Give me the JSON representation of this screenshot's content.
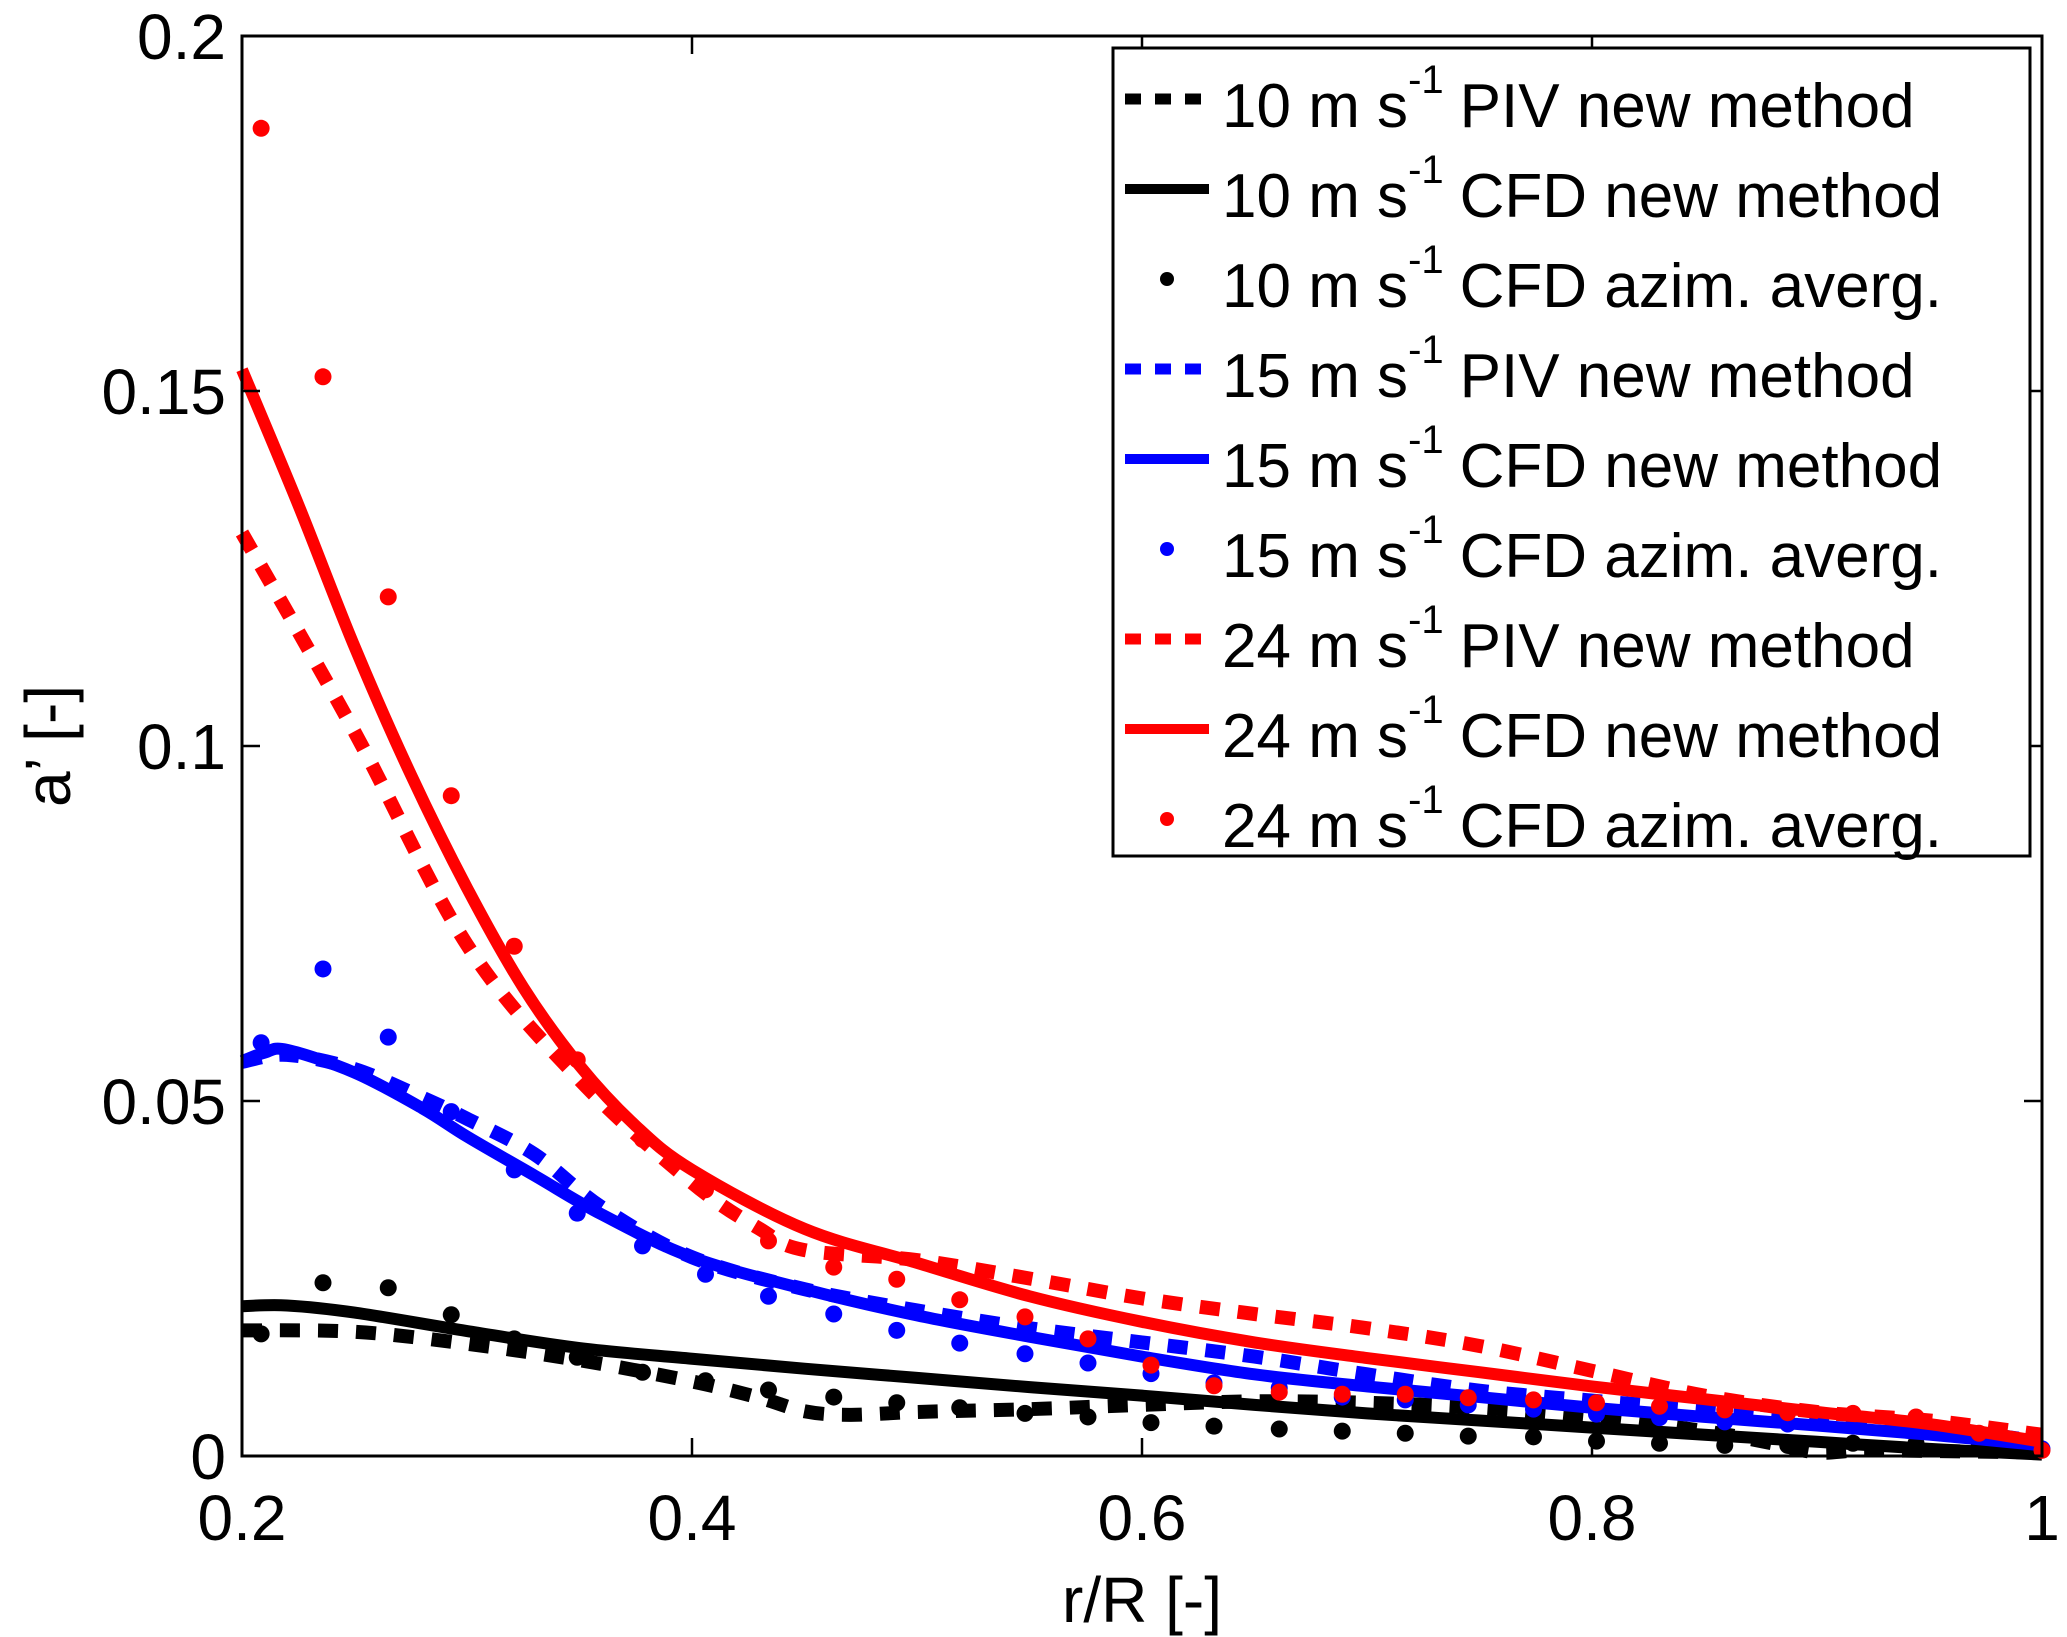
{
  "chart_data": {
    "type": "line",
    "title": "",
    "xlabel": "r/R [-]",
    "ylabel": "a’ [-]",
    "xlim": [
      0.2,
      1.0
    ],
    "ylim": [
      0,
      0.2
    ],
    "xticks": [
      0.2,
      0.4,
      0.6,
      0.8,
      1.0
    ],
    "xtick_labels": [
      "0.2",
      "0.4",
      "0.6",
      "0.8",
      "1"
    ],
    "yticks": [
      0,
      0.05,
      0.1,
      0.15,
      0.2
    ],
    "ytick_labels": [
      "0",
      "0.05",
      "0.1",
      "0.15",
      "0.2"
    ],
    "grid": false,
    "legend_position": "top-right",
    "series": [
      {
        "name": "10 m s-1 PIV new method",
        "label_prefix": "10 m s",
        "label_sup": "-1",
        "label_suffix": "PIV new method",
        "color": "#000000",
        "style": "dashed",
        "x": [
          0.2,
          0.25,
          0.3,
          0.35,
          0.4,
          0.43,
          0.45,
          0.47,
          0.5,
          0.55,
          0.6,
          0.65,
          0.7,
          0.75,
          0.8,
          0.85,
          0.88,
          0.9,
          0.92,
          0.95,
          1.0
        ],
        "y": [
          0.0177,
          0.0175,
          0.0158,
          0.0135,
          0.0105,
          0.0082,
          0.0063,
          0.0058,
          0.0062,
          0.0066,
          0.0072,
          0.0077,
          0.0075,
          0.0068,
          0.0055,
          0.0035,
          0.0018,
          0.0005,
          0.0008,
          0.0007,
          0.0005
        ]
      },
      {
        "name": "10 m s-1 CFD new method",
        "label_prefix": "10 m s",
        "label_sup": "-1",
        "label_suffix": "CFD new method",
        "color": "#000000",
        "style": "solid",
        "x": [
          0.2,
          0.22,
          0.25,
          0.3,
          0.35,
          0.4,
          0.45,
          0.5,
          0.55,
          0.6,
          0.65,
          0.7,
          0.75,
          0.8,
          0.85,
          0.9,
          0.95,
          1.0
        ],
        "y": [
          0.0211,
          0.0212,
          0.0202,
          0.0176,
          0.0152,
          0.0137,
          0.0123,
          0.011,
          0.0097,
          0.0085,
          0.0072,
          0.006,
          0.005,
          0.004,
          0.003,
          0.002,
          0.001,
          0.0002
        ]
      },
      {
        "name": "10 m s-1 CFD azim. averg.",
        "label_prefix": "10 m s",
        "label_sup": "-1",
        "label_suffix": "CFD azim. averg.",
        "color": "#000000",
        "style": "markers",
        "x": [
          0.2085,
          0.236,
          0.265,
          0.293,
          0.321,
          0.349,
          0.378,
          0.406,
          0.434,
          0.463,
          0.491,
          0.519,
          0.548,
          0.576,
          0.604,
          0.632,
          0.661,
          0.689,
          0.717,
          0.745,
          0.774,
          0.802,
          0.83,
          0.859,
          0.887,
          0.916,
          0.944,
          0.972
        ],
        "y": [
          0.0172,
          0.0244,
          0.0237,
          0.0199,
          0.0165,
          0.0139,
          0.0118,
          0.0106,
          0.0093,
          0.0083,
          0.0075,
          0.0068,
          0.006,
          0.0055,
          0.0047,
          0.0042,
          0.0038,
          0.0035,
          0.0032,
          0.0028,
          0.0027,
          0.0021,
          0.0018,
          0.0015,
          0.0015,
          0.0018,
          0.0018,
          0.0013
        ]
      },
      {
        "name": "15 m s-1 PIV new method",
        "label_prefix": "15 m s",
        "label_sup": "-1",
        "label_suffix": "PIV new method",
        "color": "#0000ff",
        "style": "dashed",
        "x": [
          0.2,
          0.22,
          0.25,
          0.28,
          0.3,
          0.33,
          0.36,
          0.4,
          0.45,
          0.5,
          0.55,
          0.6,
          0.65,
          0.7,
          0.75,
          0.8,
          0.85,
          0.9,
          0.95,
          1.0
        ],
        "y": [
          0.0555,
          0.0565,
          0.0545,
          0.0505,
          0.0475,
          0.0425,
          0.035,
          0.028,
          0.0235,
          0.0205,
          0.018,
          0.016,
          0.014,
          0.0115,
          0.0092,
          0.0078,
          0.0065,
          0.005,
          0.004,
          0.002
        ]
      },
      {
        "name": "15 m s-1 CFD new method",
        "label_prefix": "15 m s",
        "label_sup": "-1",
        "label_suffix": "CFD new method",
        "color": "#0000ff",
        "style": "solid",
        "x": [
          0.2,
          0.21,
          0.22,
          0.25,
          0.28,
          0.3,
          0.33,
          0.36,
          0.4,
          0.45,
          0.5,
          0.55,
          0.6,
          0.65,
          0.7,
          0.75,
          0.8,
          0.85,
          0.9,
          0.95,
          1.0
        ],
        "y": [
          0.0556,
          0.0568,
          0.0572,
          0.054,
          0.049,
          0.045,
          0.0395,
          0.034,
          0.028,
          0.0235,
          0.0198,
          0.0168,
          0.014,
          0.0115,
          0.0098,
          0.0083,
          0.0068,
          0.0055,
          0.0043,
          0.003,
          0.0015
        ]
      },
      {
        "name": "15 m s-1 CFD azim. averg.",
        "label_prefix": "15 m s",
        "label_sup": "-1",
        "label_suffix": "CFD azim. averg.",
        "color": "#0000ff",
        "style": "markers",
        "x": [
          0.2085,
          0.236,
          0.265,
          0.293,
          0.321,
          0.349,
          0.378,
          0.406,
          0.434,
          0.463,
          0.491,
          0.519,
          0.548,
          0.576,
          0.604,
          0.632,
          0.661,
          0.689,
          0.717,
          0.745,
          0.774,
          0.802,
          0.83,
          0.859,
          0.887,
          0.916,
          0.944,
          0.972,
          1.0
        ],
        "y": [
          0.0582,
          0.0686,
          0.059,
          0.0485,
          0.0403,
          0.0342,
          0.0296,
          0.0256,
          0.0225,
          0.02,
          0.0177,
          0.0159,
          0.0144,
          0.0131,
          0.0116,
          0.0103,
          0.0096,
          0.0083,
          0.0079,
          0.0072,
          0.0066,
          0.0059,
          0.0054,
          0.0048,
          0.0045,
          0.0042,
          0.0038,
          0.003,
          0.001
        ]
      },
      {
        "name": "24 m s-1 PIV new method",
        "label_prefix": "24 m s",
        "label_sup": "-1",
        "label_suffix": "PIV new method",
        "color": "#ff0000",
        "style": "dashed",
        "x": [
          0.2,
          0.25,
          0.3,
          0.35,
          0.4,
          0.43,
          0.45,
          0.5,
          0.55,
          0.6,
          0.65,
          0.7,
          0.75,
          0.8,
          0.85,
          0.9,
          0.95,
          1.0
        ],
        "y": [
          0.13,
          0.102,
          0.072,
          0.053,
          0.0385,
          0.032,
          0.029,
          0.0276,
          0.025,
          0.0222,
          0.02,
          0.018,
          0.0155,
          0.012,
          0.0085,
          0.0062,
          0.005,
          0.003
        ]
      },
      {
        "name": "24 m s-1 CFD new method",
        "label_prefix": "24 m s",
        "label_sup": "-1",
        "label_suffix": "CFD new method",
        "color": "#ff0000",
        "style": "solid",
        "x": [
          0.2,
          0.225,
          0.25,
          0.275,
          0.3,
          0.325,
          0.35,
          0.375,
          0.4,
          0.45,
          0.5,
          0.55,
          0.6,
          0.65,
          0.7,
          0.75,
          0.8,
          0.85,
          0.9,
          0.95,
          1.0
        ],
        "y": [
          0.153,
          0.134,
          0.114,
          0.096,
          0.08,
          0.066,
          0.055,
          0.0465,
          0.0403,
          0.032,
          0.0272,
          0.0225,
          0.0189,
          0.016,
          0.0138,
          0.0118,
          0.0098,
          0.008,
          0.0062,
          0.0045,
          0.002
        ]
      },
      {
        "name": "24 m s-1 CFD azim. averg.",
        "label_prefix": "24 m s",
        "label_sup": "-1",
        "label_suffix": "CFD azim. averg.",
        "color": "#ff0000",
        "style": "markers",
        "x": [
          0.2085,
          0.236,
          0.265,
          0.293,
          0.321,
          0.349,
          0.378,
          0.406,
          0.434,
          0.463,
          0.491,
          0.519,
          0.548,
          0.576,
          0.604,
          0.632,
          0.661,
          0.689,
          0.717,
          0.745,
          0.774,
          0.802,
          0.83,
          0.859,
          0.887,
          0.916,
          0.944,
          0.972,
          1.0
        ],
        "y": [
          0.187,
          0.152,
          0.121,
          0.093,
          0.0718,
          0.0558,
          0.0446,
          0.0375,
          0.0303,
          0.0266,
          0.0249,
          0.022,
          0.0196,
          0.0165,
          0.0128,
          0.0099,
          0.009,
          0.0087,
          0.0087,
          0.0082,
          0.0079,
          0.0075,
          0.007,
          0.0065,
          0.0061,
          0.006,
          0.0055,
          0.0032,
          0.0008
        ]
      }
    ]
  }
}
